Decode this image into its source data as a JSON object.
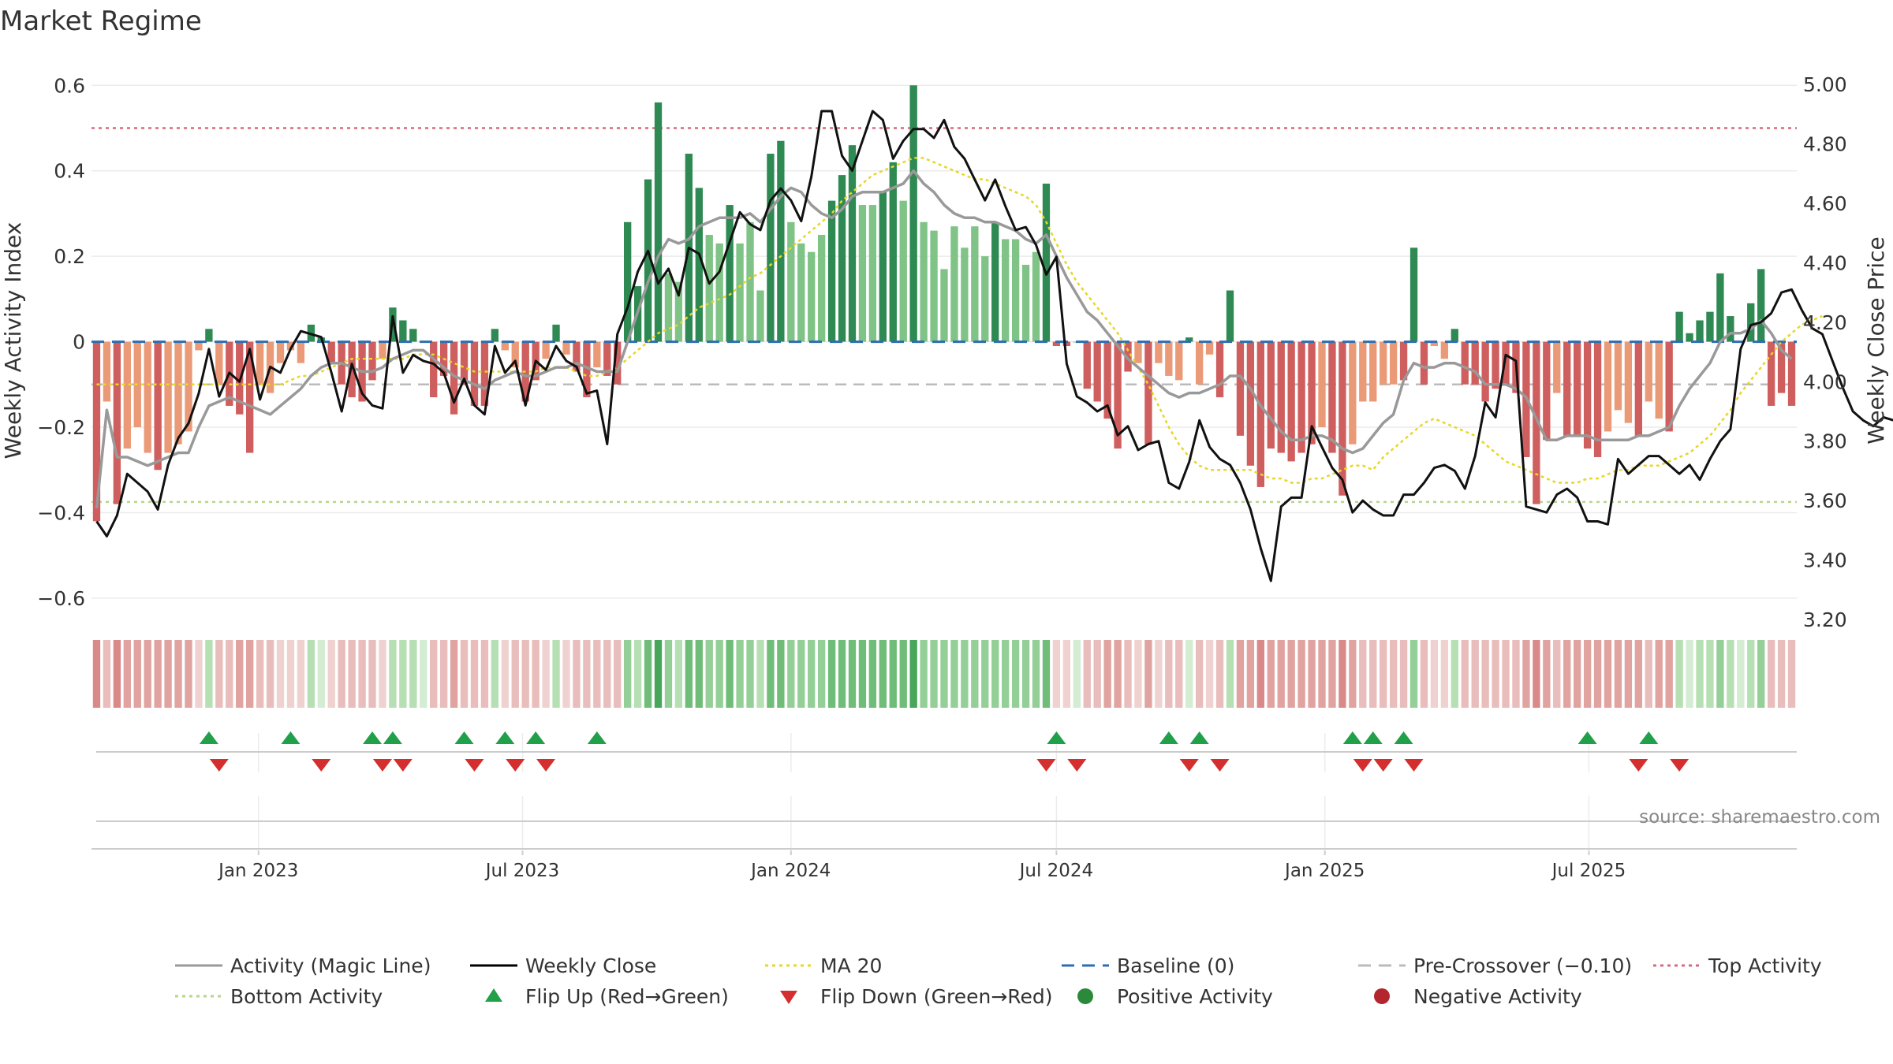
{
  "title": "Market Regime",
  "source": "source: sharemaestro.com",
  "chart_data": {
    "type": "bar",
    "x_start": "2022-09-12",
    "x_interval_days": 7,
    "x_ticks": [
      "Jan 2023",
      "Jul 2023",
      "Jan 2024",
      "Jul 2024",
      "Jan 2025",
      "Jul 2025"
    ],
    "x_tick_dates": [
      "2023-01-01",
      "2023-07-01",
      "2024-01-01",
      "2024-07-01",
      "2025-01-01",
      "2025-07-01"
    ],
    "y_left": {
      "label": "Weekly Activity Index",
      "lim": [
        -0.65,
        0.63
      ],
      "ticks": [
        0.6,
        0.4,
        0.2,
        0,
        -0.2,
        -0.4,
        -0.6
      ],
      "tick_labels": [
        "0.6",
        "0.4",
        "0.2",
        "0",
        "−0.2",
        "−0.4",
        "−0.6"
      ]
    },
    "y_right": {
      "label": "Weekly Close Price",
      "lim": [
        3.2,
        5.04
      ],
      "ticks": [
        5.0,
        4.8,
        4.6,
        4.4,
        4.2,
        4.0,
        3.8,
        3.6,
        3.4,
        3.2
      ],
      "tick_labels": [
        "5.00",
        "4.80",
        "4.60",
        "4.40",
        "4.20",
        "4.00",
        "3.80",
        "3.60",
        "3.40",
        "3.20"
      ]
    },
    "reference_lines": {
      "top_activity": 0.5,
      "bottom_activity": -0.375,
      "pre_crossover": -0.1,
      "baseline": 0
    },
    "activity": [
      -0.42,
      -0.14,
      -0.38,
      -0.25,
      -0.2,
      -0.26,
      -0.3,
      -0.26,
      -0.24,
      -0.21,
      -0.02,
      0.03,
      -0.1,
      -0.15,
      -0.17,
      -0.26,
      -0.1,
      -0.12,
      -0.05,
      -0.02,
      -0.05,
      0.04,
      0.01,
      -0.05,
      -0.1,
      -0.13,
      -0.14,
      -0.09,
      -0.04,
      0.08,
      0.05,
      0.03,
      0.0,
      -0.13,
      -0.08,
      -0.17,
      -0.1,
      -0.15,
      -0.15,
      0.03,
      -0.02,
      -0.06,
      -0.14,
      -0.09,
      -0.04,
      0.04,
      -0.03,
      -0.07,
      -0.13,
      -0.06,
      -0.08,
      -0.1,
      0.28,
      0.13,
      0.38,
      0.56,
      0.16,
      0.14,
      0.44,
      0.36,
      0.25,
      0.23,
      0.32,
      0.23,
      0.28,
      0.12,
      0.44,
      0.47,
      0.28,
      0.23,
      0.21,
      0.25,
      0.33,
      0.39,
      0.46,
      0.32,
      0.32,
      0.35,
      0.42,
      0.33,
      0.6,
      0.28,
      0.26,
      0.17,
      0.27,
      0.22,
      0.27,
      0.2,
      0.28,
      0.24,
      0.24,
      0.18,
      0.21,
      0.37,
      -0.01,
      -0.01,
      0.0,
      -0.11,
      -0.14,
      -0.18,
      -0.25,
      -0.07,
      -0.05,
      -0.24,
      -0.05,
      -0.08,
      -0.09,
      0.01,
      -0.1,
      -0.03,
      -0.13,
      0.12,
      -0.22,
      -0.29,
      -0.34,
      -0.25,
      -0.26,
      -0.28,
      -0.26,
      -0.24,
      -0.2,
      -0.26,
      -0.36,
      -0.24,
      -0.14,
      -0.14,
      -0.1,
      -0.1,
      -0.09,
      0.22,
      -0.1,
      -0.01,
      -0.04,
      0.03,
      -0.1,
      -0.1,
      -0.14,
      -0.11,
      -0.1,
      -0.12,
      -0.27,
      -0.38,
      -0.23,
      -0.12,
      -0.22,
      -0.22,
      -0.25,
      -0.27,
      -0.21,
      -0.16,
      -0.19,
      -0.22,
      -0.14,
      -0.18,
      -0.21,
      0.07,
      0.02,
      0.05,
      0.07,
      0.16,
      0.06,
      0.0,
      0.09,
      0.17,
      -0.15,
      -0.12,
      -0.15
    ],
    "magic_line": [
      -0.39,
      -0.16,
      -0.27,
      -0.27,
      -0.28,
      -0.29,
      -0.28,
      -0.27,
      -0.26,
      -0.26,
      -0.2,
      -0.15,
      -0.14,
      -0.13,
      -0.14,
      -0.15,
      -0.16,
      -0.17,
      -0.15,
      -0.13,
      -0.11,
      -0.08,
      -0.06,
      -0.05,
      -0.05,
      -0.06,
      -0.07,
      -0.07,
      -0.06,
      -0.04,
      -0.03,
      -0.02,
      -0.02,
      -0.04,
      -0.06,
      -0.08,
      -0.09,
      -0.1,
      -0.11,
      -0.09,
      -0.08,
      -0.07,
      -0.08,
      -0.08,
      -0.07,
      -0.06,
      -0.06,
      -0.05,
      -0.06,
      -0.07,
      -0.07,
      -0.07,
      0.0,
      0.07,
      0.14,
      0.2,
      0.24,
      0.23,
      0.24,
      0.27,
      0.28,
      0.29,
      0.29,
      0.29,
      0.3,
      0.28,
      0.31,
      0.34,
      0.36,
      0.35,
      0.32,
      0.3,
      0.29,
      0.31,
      0.34,
      0.35,
      0.35,
      0.35,
      0.36,
      0.37,
      0.4,
      0.37,
      0.35,
      0.32,
      0.3,
      0.29,
      0.29,
      0.28,
      0.28,
      0.27,
      0.26,
      0.24,
      0.23,
      0.25,
      0.2,
      0.15,
      0.11,
      0.07,
      0.05,
      0.02,
      -0.01,
      -0.04,
      -0.06,
      -0.08,
      -0.1,
      -0.12,
      -0.13,
      -0.12,
      -0.12,
      -0.11,
      -0.1,
      -0.08,
      -0.08,
      -0.11,
      -0.15,
      -0.18,
      -0.21,
      -0.23,
      -0.23,
      -0.22,
      -0.22,
      -0.23,
      -0.25,
      -0.26,
      -0.25,
      -0.22,
      -0.19,
      -0.17,
      -0.09,
      -0.05,
      -0.06,
      -0.06,
      -0.05,
      -0.05,
      -0.06,
      -0.07,
      -0.1,
      -0.1,
      -0.1,
      -0.11,
      -0.13,
      -0.18,
      -0.23,
      -0.23,
      -0.22,
      -0.22,
      -0.22,
      -0.23,
      -0.23,
      -0.23,
      -0.23,
      -0.22,
      -0.22,
      -0.21,
      -0.2,
      -0.15,
      -0.11,
      -0.08,
      -0.05,
      0.0,
      0.02,
      0.02,
      0.03,
      0.05,
      0.02,
      -0.02,
      -0.04
    ],
    "weekly_close": [
      3.53,
      3.48,
      3.55,
      3.69,
      3.66,
      3.63,
      3.57,
      3.72,
      3.81,
      3.86,
      3.96,
      4.11,
      3.95,
      4.03,
      4.0,
      4.11,
      3.94,
      4.05,
      4.03,
      4.11,
      4.17,
      4.16,
      4.15,
      4.03,
      3.9,
      4.06,
      3.96,
      3.92,
      3.91,
      4.22,
      4.03,
      4.09,
      4.07,
      4.06,
      4.03,
      3.93,
      4.01,
      3.92,
      3.89,
      4.12,
      4.03,
      4.07,
      3.92,
      4.07,
      4.04,
      4.12,
      4.07,
      4.05,
      3.96,
      3.97,
      3.79,
      4.16,
      4.25,
      4.37,
      4.44,
      4.33,
      4.38,
      4.29,
      4.45,
      4.43,
      4.33,
      4.37,
      4.47,
      4.57,
      4.53,
      4.51,
      4.61,
      4.65,
      4.61,
      4.54,
      4.69,
      4.91,
      4.91,
      4.76,
      4.71,
      4.81,
      4.91,
      4.88,
      4.75,
      4.81,
      4.85,
      4.85,
      4.82,
      4.88,
      4.79,
      4.75,
      4.68,
      4.61,
      4.68,
      4.59,
      4.51,
      4.52,
      4.46,
      4.36,
      4.42,
      4.06,
      3.95,
      3.93,
      3.9,
      3.92,
      3.82,
      3.85,
      3.77,
      3.79,
      3.8,
      3.66,
      3.64,
      3.73,
      3.87,
      3.78,
      3.74,
      3.72,
      3.66,
      3.57,
      3.44,
      3.33,
      3.58,
      3.61,
      3.61,
      3.85,
      3.78,
      3.71,
      3.67,
      3.56,
      3.6,
      3.57,
      3.55,
      3.55,
      3.62,
      3.62,
      3.66,
      3.71,
      3.72,
      3.7,
      3.64,
      3.75,
      3.93,
      3.88,
      4.09,
      4.07,
      3.58,
      3.57,
      3.56,
      3.62,
      3.64,
      3.61,
      3.53,
      3.53,
      3.52,
      3.74,
      3.69,
      3.72,
      3.75,
      3.75,
      3.72,
      3.69,
      3.72,
      3.67,
      3.74,
      3.8,
      3.84,
      4.11,
      4.19,
      4.2,
      4.23,
      4.3,
      4.31,
      4.24,
      4.18,
      4.16,
      4.07,
      3.98,
      3.9,
      3.87,
      3.85,
      3.88,
      3.87,
      3.86,
      3.85
    ],
    "ma20": [
      -0.1,
      -0.1,
      -0.1,
      -0.1,
      -0.1,
      -0.1,
      -0.1,
      -0.1,
      -0.1,
      -0.1,
      -0.1,
      -0.1,
      -0.1,
      -0.1,
      -0.1,
      -0.1,
      -0.1,
      -0.1,
      -0.1,
      -0.09,
      -0.08,
      -0.08,
      -0.07,
      -0.06,
      -0.05,
      -0.04,
      -0.04,
      -0.04,
      -0.04,
      -0.04,
      -0.04,
      -0.03,
      -0.03,
      -0.03,
      -0.04,
      -0.05,
      -0.06,
      -0.07,
      -0.07,
      -0.07,
      -0.07,
      -0.07,
      -0.07,
      -0.07,
      -0.06,
      -0.06,
      -0.06,
      -0.07,
      -0.08,
      -0.08,
      -0.07,
      -0.06,
      -0.04,
      -0.02,
      0.0,
      0.02,
      0.03,
      0.04,
      0.06,
      0.08,
      0.09,
      0.1,
      0.11,
      0.13,
      0.15,
      0.16,
      0.18,
      0.2,
      0.22,
      0.24,
      0.26,
      0.28,
      0.3,
      0.33,
      0.35,
      0.37,
      0.39,
      0.4,
      0.41,
      0.42,
      0.43,
      0.43,
      0.42,
      0.41,
      0.4,
      0.39,
      0.38,
      0.38,
      0.37,
      0.36,
      0.35,
      0.34,
      0.32,
      0.28,
      0.23,
      0.18,
      0.14,
      0.11,
      0.08,
      0.05,
      0.02,
      -0.02,
      -0.06,
      -0.1,
      -0.15,
      -0.2,
      -0.24,
      -0.27,
      -0.29,
      -0.3,
      -0.3,
      -0.3,
      -0.3,
      -0.3,
      -0.31,
      -0.32,
      -0.32,
      -0.33,
      -0.33,
      -0.32,
      -0.32,
      -0.31,
      -0.3,
      -0.29,
      -0.29,
      -0.3,
      -0.27,
      -0.25,
      -0.23,
      -0.21,
      -0.19,
      -0.18,
      -0.19,
      -0.2,
      -0.21,
      -0.22,
      -0.24,
      -0.26,
      -0.28,
      -0.29,
      -0.3,
      -0.31,
      -0.32,
      -0.33,
      -0.33,
      -0.33,
      -0.32,
      -0.32,
      -0.31,
      -0.3,
      -0.3,
      -0.29,
      -0.29,
      -0.29,
      -0.28,
      -0.27,
      -0.26,
      -0.24,
      -0.22,
      -0.19,
      -0.16,
      -0.12,
      -0.09,
      -0.06,
      -0.03,
      0.0,
      0.02,
      0.04,
      0.05,
      0.06
    ],
    "flip_up_index": [
      11,
      19,
      27,
      29,
      36,
      40,
      43,
      49,
      94,
      105,
      108,
      123,
      125,
      128,
      146,
      152
    ],
    "flip_down_index": [
      12,
      22,
      28,
      30,
      37,
      41,
      44,
      93,
      96,
      107,
      110,
      124,
      126,
      129,
      151,
      155
    ],
    "legend": [
      {
        "label": "Activity (Magic Line)",
        "kind": "line",
        "color": "#999999",
        "dash": "solid"
      },
      {
        "label": "Weekly Close",
        "kind": "line",
        "color": "#000000",
        "dash": "solid"
      },
      {
        "label": "MA 20",
        "kind": "line",
        "color": "#e8d62a",
        "dash": "dotted"
      },
      {
        "label": "Baseline (0)",
        "kind": "line",
        "color": "#2e6db0",
        "dash": "dashed"
      },
      {
        "label": "Pre-Crossover (−0.10)",
        "kind": "line",
        "color": "#bbbbbb",
        "dash": "dashed"
      },
      {
        "label": "Top Activity",
        "kind": "line",
        "color": "#d66a7f",
        "dash": "dotted"
      },
      {
        "label": "Bottom Activity",
        "kind": "line",
        "color": "#b5d68e",
        "dash": "dotted"
      },
      {
        "label": "Flip Up (Red→Green)",
        "kind": "triangle-up",
        "color": "#21a04a"
      },
      {
        "label": "Flip Down (Green→Red)",
        "kind": "triangle-down",
        "color": "#d42e2e"
      },
      {
        "label": "Positive Activity",
        "kind": "dot",
        "color": "#2a8a3a"
      },
      {
        "label": "Negative Activity",
        "kind": "dot",
        "color": "#b3262e"
      }
    ],
    "legend_placement": "bottom"
  }
}
